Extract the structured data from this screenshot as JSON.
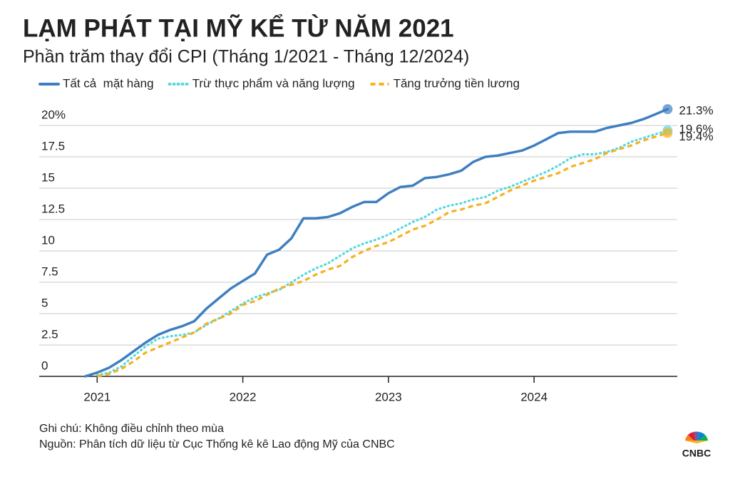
{
  "chart_data": {
    "type": "line",
    "title": "LẠM PHÁT TẠI MỸ KỂ TỪ NĂM 2021",
    "subtitle": "Phần trăm thay đổi CPI (Tháng 1/2021 - Tháng 12/2024)",
    "x": [
      0,
      1,
      2,
      3,
      4,
      5,
      6,
      7,
      8,
      9,
      10,
      11,
      12,
      13,
      14,
      15,
      16,
      17,
      18,
      19,
      20,
      21,
      22,
      23,
      24,
      25,
      26,
      27,
      28,
      29,
      30,
      31,
      32,
      33,
      34,
      35,
      36,
      37,
      38,
      39,
      40,
      41,
      42,
      43,
      44,
      45,
      46,
      47,
      48
    ],
    "xlim": [
      -3.6,
      48.8
    ],
    "xticks": [
      {
        "value": 1,
        "label": "2021"
      },
      {
        "value": 13,
        "label": "2022"
      },
      {
        "value": 25,
        "label": "2023"
      },
      {
        "value": 37,
        "label": "2024"
      }
    ],
    "ylim": [
      -1,
      22.5
    ],
    "yticks": [
      0,
      2.5,
      5,
      7.5,
      10,
      12.5,
      15,
      17.5,
      {
        "value": 20,
        "label": "20%"
      }
    ],
    "grid": true,
    "legend": "top-left",
    "series": [
      {
        "name": "Tất cả  mặt hàng",
        "color": "#3f7fc0",
        "dash": "solid",
        "end_label": "21.3%",
        "end_color": "#3f7fc0",
        "values": [
          0,
          0.3,
          0.7,
          1.3,
          2.0,
          2.7,
          3.3,
          3.7,
          4.0,
          4.4,
          5.4,
          6.2,
          7.0,
          7.6,
          8.2,
          9.7,
          10.1,
          11.0,
          12.6,
          12.6,
          12.7,
          13.0,
          13.5,
          13.9,
          13.9,
          14.6,
          15.1,
          15.2,
          15.8,
          15.9,
          16.1,
          16.4,
          17.1,
          17.5,
          17.6,
          17.8,
          18.0,
          18.4,
          18.9,
          19.4,
          19.5,
          19.5,
          19.5,
          19.8,
          20.0,
          20.2,
          20.5,
          20.9,
          21.3
        ]
      },
      {
        "name": "Trừ thực phẩm và năng lượng",
        "color": "#55d8de",
        "dash": "dotted",
        "end_label": "19.6%",
        "end_color": "#2a9696",
        "values": [
          null,
          0.1,
          0.3,
          0.8,
          1.6,
          2.4,
          3.0,
          3.2,
          3.3,
          3.5,
          4.1,
          4.6,
          5.2,
          5.8,
          6.3,
          6.6,
          6.9,
          7.5,
          8.1,
          8.6,
          9.0,
          9.6,
          10.2,
          10.6,
          10.9,
          11.3,
          11.8,
          12.3,
          12.7,
          13.3,
          13.6,
          13.8,
          14.1,
          14.3,
          14.8,
          15.1,
          15.5,
          15.9,
          16.3,
          16.8,
          17.4,
          17.7,
          17.7,
          17.9,
          18.2,
          18.7,
          19.0,
          19.3,
          19.6
        ]
      },
      {
        "name": "Tăng trưởng tiền lương",
        "color": "#f5b120",
        "dash": "dashed",
        "end_label": "19.4%",
        "end_color": "#a8832a",
        "values": [
          null,
          0,
          0.2,
          0.6,
          1.2,
          1.9,
          2.3,
          2.7,
          3.1,
          3.5,
          4.2,
          4.6,
          5.0,
          5.7,
          6.0,
          6.5,
          7.0,
          7.3,
          7.6,
          8.1,
          8.5,
          8.8,
          9.5,
          10.0,
          10.4,
          10.7,
          11.2,
          11.7,
          12.0,
          12.5,
          13.1,
          13.3,
          13.6,
          13.8,
          14.3,
          14.8,
          15.2,
          15.6,
          15.9,
          16.2,
          16.7,
          17.0,
          17.3,
          17.8,
          18.1,
          18.4,
          18.8,
          19.1,
          19.4
        ]
      }
    ],
    "notes": [
      "Ghi chú: Không điều chỉnh theo mùa",
      "Nguồn: Phân tích dữ liệu từ Cục Thống kê kê Lao động Mỹ của CNBC"
    ],
    "logo": "CNBC"
  }
}
